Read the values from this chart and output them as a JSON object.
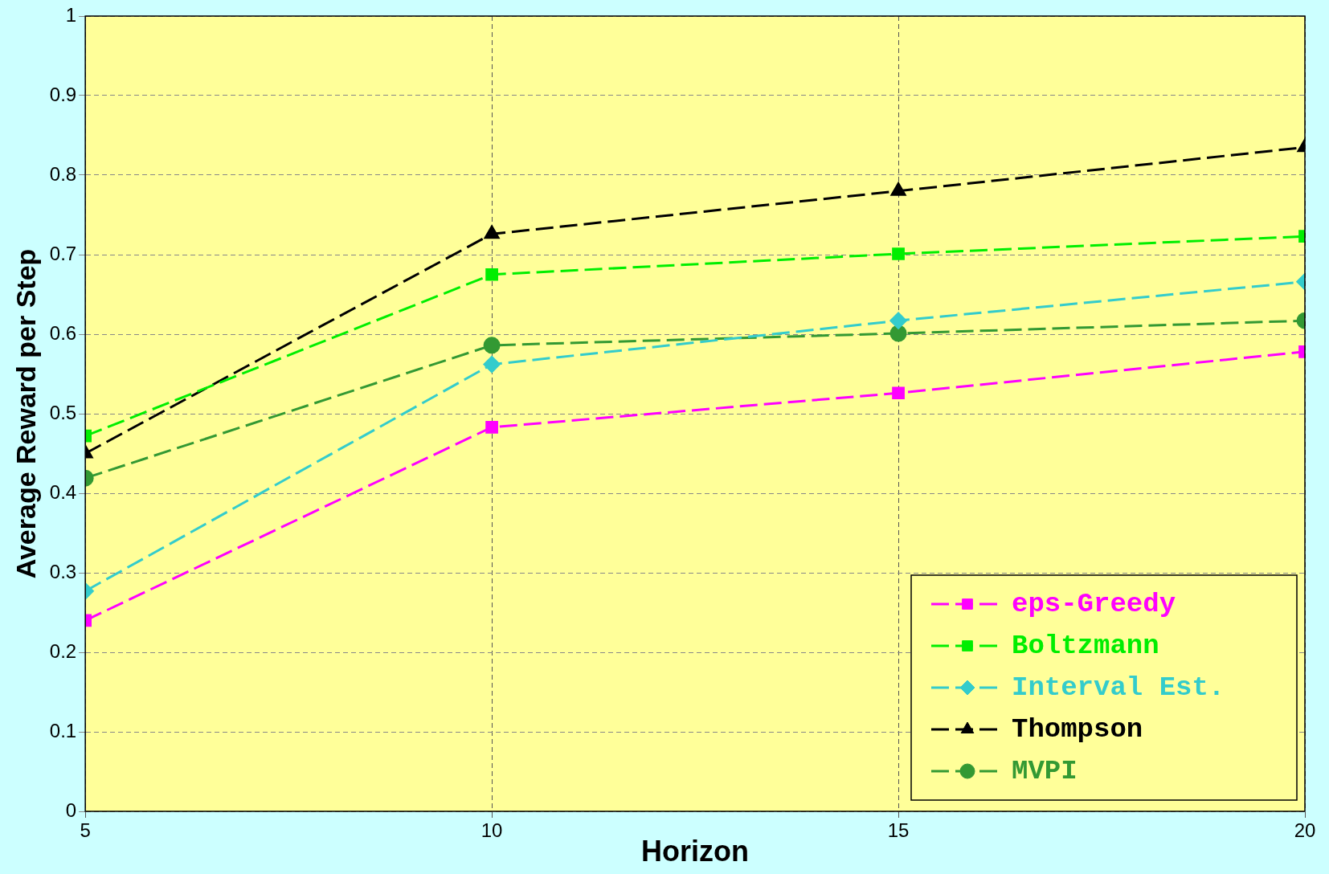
{
  "chart_data": {
    "type": "line",
    "xlabel": "Horizon",
    "ylabel": "Average Reward per Step",
    "x": [
      5,
      10,
      15,
      20
    ],
    "xlim": [
      5,
      20
    ],
    "xticks": [
      5,
      10,
      15,
      20
    ],
    "ylim": [
      0,
      1
    ],
    "yticks": [
      0,
      0.1,
      0.2,
      0.3,
      0.4,
      0.5,
      0.6,
      0.7,
      0.8,
      0.9,
      1
    ],
    "grid": true,
    "legend": "bottom right",
    "line_style": "dashed",
    "series": [
      {
        "name": "eps-Greedy",
        "color": "#ff00ff",
        "marker": "square",
        "values": [
          0.24,
          0.483,
          0.526,
          0.578
        ]
      },
      {
        "name": "Boltzmann",
        "color": "#00ee00",
        "marker": "square",
        "values": [
          0.472,
          0.675,
          0.701,
          0.723
        ]
      },
      {
        "name": "Interval Est.",
        "color": "#33cccc",
        "marker": "diamond",
        "values": [
          0.277,
          0.562,
          0.617,
          0.666
        ]
      },
      {
        "name": "Thompson",
        "color": "#000000",
        "marker": "triangle",
        "values": [
          0.45,
          0.726,
          0.78,
          0.835
        ]
      },
      {
        "name": "MVPI",
        "color": "#339933",
        "marker": "circle",
        "values": [
          0.419,
          0.586,
          0.601,
          0.617
        ]
      }
    ]
  }
}
